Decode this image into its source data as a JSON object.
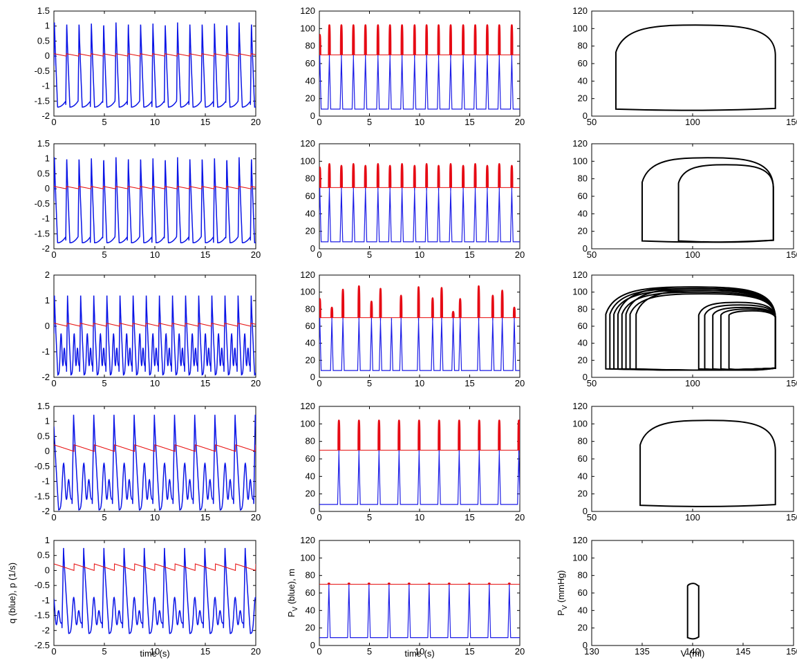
{
  "labels": {
    "time_label": "time (s)",
    "q_label": "q (blue), p (1/s)",
    "pv_label": "P",
    "pv_sub": "V",
    "pv_tail": " (blue), m",
    "pvp_label": "P",
    "pvp_sub": "V",
    "pvp_tail": " (mmHg)",
    "vol_label": "V (ml)"
  },
  "colors": {
    "q": "#0a14e6",
    "p": "#e60a0a",
    "pv": "#1a1ae6",
    "pv_high": "#e60a14",
    "m": "#e60a0a",
    "loop": "#000000"
  },
  "chart_data": {
    "type": "line",
    "grid": false,
    "rows": [
      {
        "q_panel": {
          "xlim": [
            0,
            20
          ],
          "ylim": [
            -2,
            1.5
          ],
          "yticks": [
            -2,
            -1.5,
            -1,
            -0.5,
            0,
            0.5,
            1,
            1.5
          ],
          "xticks": [
            0,
            5,
            10,
            15,
            20
          ],
          "q": {
            "period": 1.22,
            "t0": 0.05,
            "peak": 1.12,
            "trough": -1.7,
            "notch": null
          },
          "p": {
            "period": 1.22,
            "high": 0.08,
            "low": 0.0
          }
        },
        "pv_panel": {
          "xlim": [
            0,
            20
          ],
          "ylim": [
            0,
            120
          ],
          "yticks": [
            0,
            20,
            40,
            60,
            80,
            100,
            120
          ],
          "xticks": [
            0,
            5,
            10,
            15,
            20
          ],
          "beats": [
            {
              "t": 0.05,
              "peak": 93
            },
            {
              "t": 1.0,
              "peak": 104
            },
            {
              "t": 2.2,
              "peak": 104
            },
            {
              "t": 3.4,
              "peak": 104
            },
            {
              "t": 4.6,
              "peak": 104
            },
            {
              "t": 5.85,
              "peak": 104
            },
            {
              "t": 7.05,
              "peak": 104
            },
            {
              "t": 8.25,
              "peak": 104
            },
            {
              "t": 9.5,
              "peak": 104
            },
            {
              "t": 10.7,
              "peak": 104
            },
            {
              "t": 11.9,
              "peak": 104
            },
            {
              "t": 13.1,
              "peak": 104
            },
            {
              "t": 14.35,
              "peak": 104
            },
            {
              "t": 15.55,
              "peak": 104
            },
            {
              "t": 16.75,
              "peak": 104
            },
            {
              "t": 17.95,
              "peak": 104
            },
            {
              "t": 19.2,
              "peak": 104
            }
          ],
          "baseline": 8,
          "m": 70
        },
        "loop_panel": {
          "xlim": [
            50,
            150
          ],
          "ylim": [
            0,
            120
          ],
          "yticks": [
            0,
            20,
            40,
            60,
            80,
            100,
            120
          ],
          "xticks": [
            50,
            100,
            150
          ],
          "loops": [
            {
              "vmin": 62,
              "vmax": 141,
              "top": 104,
              "left_top": 73,
              "right_top": 70,
              "bottom": 8
            }
          ]
        }
      },
      {
        "q_panel": {
          "xlim": [
            0,
            20
          ],
          "ylim": [
            -2,
            1.5
          ],
          "yticks": [
            -2,
            -1.5,
            -1,
            -0.5,
            0,
            0.5,
            1,
            1.5
          ],
          "xticks": [
            0,
            5,
            10,
            15,
            20
          ],
          "q": {
            "period": 1.22,
            "t0": 0.05,
            "peak": 1.05,
            "trough": -1.8,
            "notch": null
          },
          "p": {
            "period": 1.22,
            "high": 0.08,
            "low": 0.0
          }
        },
        "pv_panel": {
          "xlim": [
            0,
            20
          ],
          "ylim": [
            0,
            120
          ],
          "yticks": [
            0,
            20,
            40,
            60,
            80,
            100,
            120
          ],
          "xticks": [
            0,
            5,
            10,
            15,
            20
          ],
          "beats": [
            {
              "t": 0.05,
              "peak": 93
            },
            {
              "t": 1.0,
              "peak": 97
            },
            {
              "t": 2.2,
              "peak": 95
            },
            {
              "t": 3.4,
              "peak": 97
            },
            {
              "t": 4.6,
              "peak": 95
            },
            {
              "t": 5.85,
              "peak": 97
            },
            {
              "t": 7.05,
              "peak": 95
            },
            {
              "t": 8.25,
              "peak": 97
            },
            {
              "t": 9.5,
              "peak": 95
            },
            {
              "t": 10.7,
              "peak": 97
            },
            {
              "t": 11.9,
              "peak": 95
            },
            {
              "t": 13.1,
              "peak": 97
            },
            {
              "t": 14.35,
              "peak": 95
            },
            {
              "t": 15.55,
              "peak": 97
            },
            {
              "t": 16.75,
              "peak": 95
            },
            {
              "t": 17.95,
              "peak": 97
            },
            {
              "t": 19.2,
              "peak": 95
            }
          ],
          "baseline": 8,
          "m": 70
        },
        "loop_panel": {
          "xlim": [
            50,
            150
          ],
          "ylim": [
            0,
            120
          ],
          "yticks": [
            0,
            20,
            40,
            60,
            80,
            100,
            120
          ],
          "xticks": [
            50,
            100,
            150
          ],
          "loops": [
            {
              "vmin": 75,
              "vmax": 140,
              "top": 104,
              "left_top": 76,
              "right_top": 70,
              "bottom": 9
            },
            {
              "vmin": 93,
              "vmax": 140,
              "top": 96,
              "left_top": 75,
              "right_top": 70,
              "bottom": 9
            }
          ]
        }
      },
      {
        "q_panel": {
          "xlim": [
            0,
            20
          ],
          "ylim": [
            -2,
            2
          ],
          "yticks": [
            -2,
            -1,
            0,
            1,
            2
          ],
          "xticks": [
            0,
            5,
            10,
            15,
            20
          ],
          "q": {
            "period": 1.3,
            "t0": 0.05,
            "peak": 1.2,
            "trough": -1.9,
            "notch": -0.3
          },
          "p": {
            "period": 1.3,
            "high": 0.12,
            "low": 0.0
          }
        },
        "pv_panel": {
          "xlim": [
            0,
            20
          ],
          "ylim": [
            0,
            120
          ],
          "yticks": [
            0,
            20,
            40,
            60,
            80,
            100,
            120
          ],
          "xticks": [
            0,
            5,
            10,
            15,
            20
          ],
          "beats": [
            {
              "t": 0.05,
              "peak": 92
            },
            {
              "t": 1.25,
              "peak": 82
            },
            {
              "t": 2.35,
              "peak": 103
            },
            {
              "t": 3.95,
              "peak": 107
            },
            {
              "t": 5.2,
              "peak": 89
            },
            {
              "t": 6.1,
              "peak": 104
            },
            {
              "t": 7.2,
              "peak": 69
            },
            {
              "t": 8.15,
              "peak": 96
            },
            {
              "t": 9.9,
              "peak": 106
            },
            {
              "t": 11.3,
              "peak": 93
            },
            {
              "t": 12.2,
              "peak": 105
            },
            {
              "t": 13.35,
              "peak": 77
            },
            {
              "t": 14.05,
              "peak": 92
            },
            {
              "t": 15.9,
              "peak": 107
            },
            {
              "t": 17.3,
              "peak": 96
            },
            {
              "t": 18.25,
              "peak": 102
            },
            {
              "t": 19.45,
              "peak": 82
            }
          ],
          "baseline": 8,
          "m": 70
        },
        "loop_panel": {
          "xlim": [
            50,
            150
          ],
          "ylim": [
            0,
            120
          ],
          "yticks": [
            0,
            20,
            40,
            60,
            80,
            100,
            120
          ],
          "xticks": [
            50,
            100,
            150
          ],
          "loops": [
            {
              "vmin": 57,
              "vmax": 141,
              "top": 106,
              "left_top": 74,
              "right_top": 70,
              "bottom": 10
            },
            {
              "vmin": 59,
              "vmax": 141,
              "top": 104,
              "left_top": 74,
              "right_top": 70,
              "bottom": 10
            },
            {
              "vmin": 61,
              "vmax": 141,
              "top": 102,
              "left_top": 74,
              "right_top": 70,
              "bottom": 10
            },
            {
              "vmin": 63,
              "vmax": 141,
              "top": 106,
              "left_top": 74,
              "right_top": 70,
              "bottom": 10
            },
            {
              "vmin": 65,
              "vmax": 141,
              "top": 100,
              "left_top": 74,
              "right_top": 70,
              "bottom": 10
            },
            {
              "vmin": 67,
              "vmax": 141,
              "top": 104,
              "left_top": 74,
              "right_top": 70,
              "bottom": 10
            },
            {
              "vmin": 69,
              "vmax": 141,
              "top": 98,
              "left_top": 74,
              "right_top": 70,
              "bottom": 10
            },
            {
              "vmin": 72,
              "vmax": 141,
              "top": 102,
              "left_top": 74,
              "right_top": 70,
              "bottom": 10
            },
            {
              "vmin": 103,
              "vmax": 141,
              "top": 88,
              "left_top": 73,
              "right_top": 70,
              "bottom": 10
            },
            {
              "vmin": 106,
              "vmax": 141,
              "top": 85,
              "left_top": 73,
              "right_top": 70,
              "bottom": 10
            },
            {
              "vmin": 110,
              "vmax": 141,
              "top": 82,
              "left_top": 73,
              "right_top": 70,
              "bottom": 10
            },
            {
              "vmin": 114,
              "vmax": 141,
              "top": 80,
              "left_top": 73,
              "right_top": 70,
              "bottom": 10
            },
            {
              "vmin": 118,
              "vmax": 141,
              "top": 78,
              "left_top": 73,
              "right_top": 70,
              "bottom": 10
            }
          ]
        }
      },
      {
        "q_panel": {
          "xlim": [
            0,
            20
          ],
          "ylim": [
            -2,
            1.5
          ],
          "yticks": [
            -2,
            -1.5,
            -1,
            -0.5,
            0,
            0.5,
            1,
            1.5
          ],
          "xticks": [
            0,
            5,
            10,
            15,
            20
          ],
          "q": {
            "period": 2.0,
            "t0": 1.95,
            "peak": 1.22,
            "trough": -1.95,
            "notch": -0.4
          },
          "p": {
            "period": 2.0,
            "high": 0.22,
            "low": 0.0
          }
        },
        "pv_panel": {
          "xlim": [
            0,
            20
          ],
          "ylim": [
            0,
            120
          ],
          "yticks": [
            0,
            20,
            40,
            60,
            80,
            100,
            120
          ],
          "xticks": [
            0,
            5,
            10,
            15,
            20
          ],
          "beats": [
            {
              "t": 1.95,
              "peak": 104
            },
            {
              "t": 3.95,
              "peak": 104
            },
            {
              "t": 5.95,
              "peak": 104
            },
            {
              "t": 7.95,
              "peak": 104
            },
            {
              "t": 9.95,
              "peak": 104
            },
            {
              "t": 11.95,
              "peak": 104
            },
            {
              "t": 13.95,
              "peak": 104
            },
            {
              "t": 15.95,
              "peak": 104
            },
            {
              "t": 17.95,
              "peak": 104
            },
            {
              "t": 19.9,
              "peak": 104
            }
          ],
          "baseline": 8,
          "m": 70
        },
        "loop_panel": {
          "xlim": [
            50,
            150
          ],
          "ylim": [
            0,
            120
          ],
          "yticks": [
            0,
            20,
            40,
            60,
            80,
            100,
            120
          ],
          "xticks": [
            50,
            100,
            150
          ],
          "loops": [
            {
              "vmin": 74,
              "vmax": 141,
              "top": 104,
              "left_top": 76,
              "right_top": 70,
              "bottom": 7
            }
          ]
        }
      },
      {
        "q_panel": {
          "xlim": [
            0,
            20
          ],
          "ylim": [
            -2.5,
            1
          ],
          "yticks": [
            -2.5,
            -2,
            -1.5,
            -1,
            -0.5,
            0,
            0.5,
            1
          ],
          "xticks": [
            0,
            5,
            10,
            15,
            20
          ],
          "q": {
            "period": 2.0,
            "t0": 0.95,
            "peak": 0.75,
            "trough": -2.1,
            "notch": -0.9
          },
          "p": {
            "period": 2.0,
            "high": 0.22,
            "low": 0.0
          }
        },
        "pv_panel": {
          "xlim": [
            0,
            20
          ],
          "ylim": [
            0,
            120
          ],
          "yticks": [
            0,
            20,
            40,
            60,
            80,
            100,
            120
          ],
          "xticks": [
            0,
            5,
            10,
            15,
            20
          ],
          "beats": [
            {
              "t": 0.95,
              "peak": 71
            },
            {
              "t": 2.95,
              "peak": 71
            },
            {
              "t": 4.95,
              "peak": 71
            },
            {
              "t": 6.95,
              "peak": 71
            },
            {
              "t": 8.95,
              "peak": 71
            },
            {
              "t": 10.95,
              "peak": 71
            },
            {
              "t": 12.95,
              "peak": 71
            },
            {
              "t": 14.95,
              "peak": 71
            },
            {
              "t": 16.95,
              "peak": 71
            },
            {
              "t": 18.95,
              "peak": 71
            }
          ],
          "baseline": 9,
          "m": 70
        },
        "loop_panel": {
          "xlim": [
            130,
            150
          ],
          "ylim": [
            0,
            120
          ],
          "yticks": [
            0,
            20,
            40,
            60,
            80,
            100,
            120
          ],
          "xticks": [
            130,
            135,
            140,
            145,
            150
          ],
          "loops": [
            {
              "vmin": 139.5,
              "vmax": 140.6,
              "top": 71,
              "left_top": 68,
              "right_top": 68,
              "bottom": 9
            }
          ]
        }
      }
    ]
  }
}
